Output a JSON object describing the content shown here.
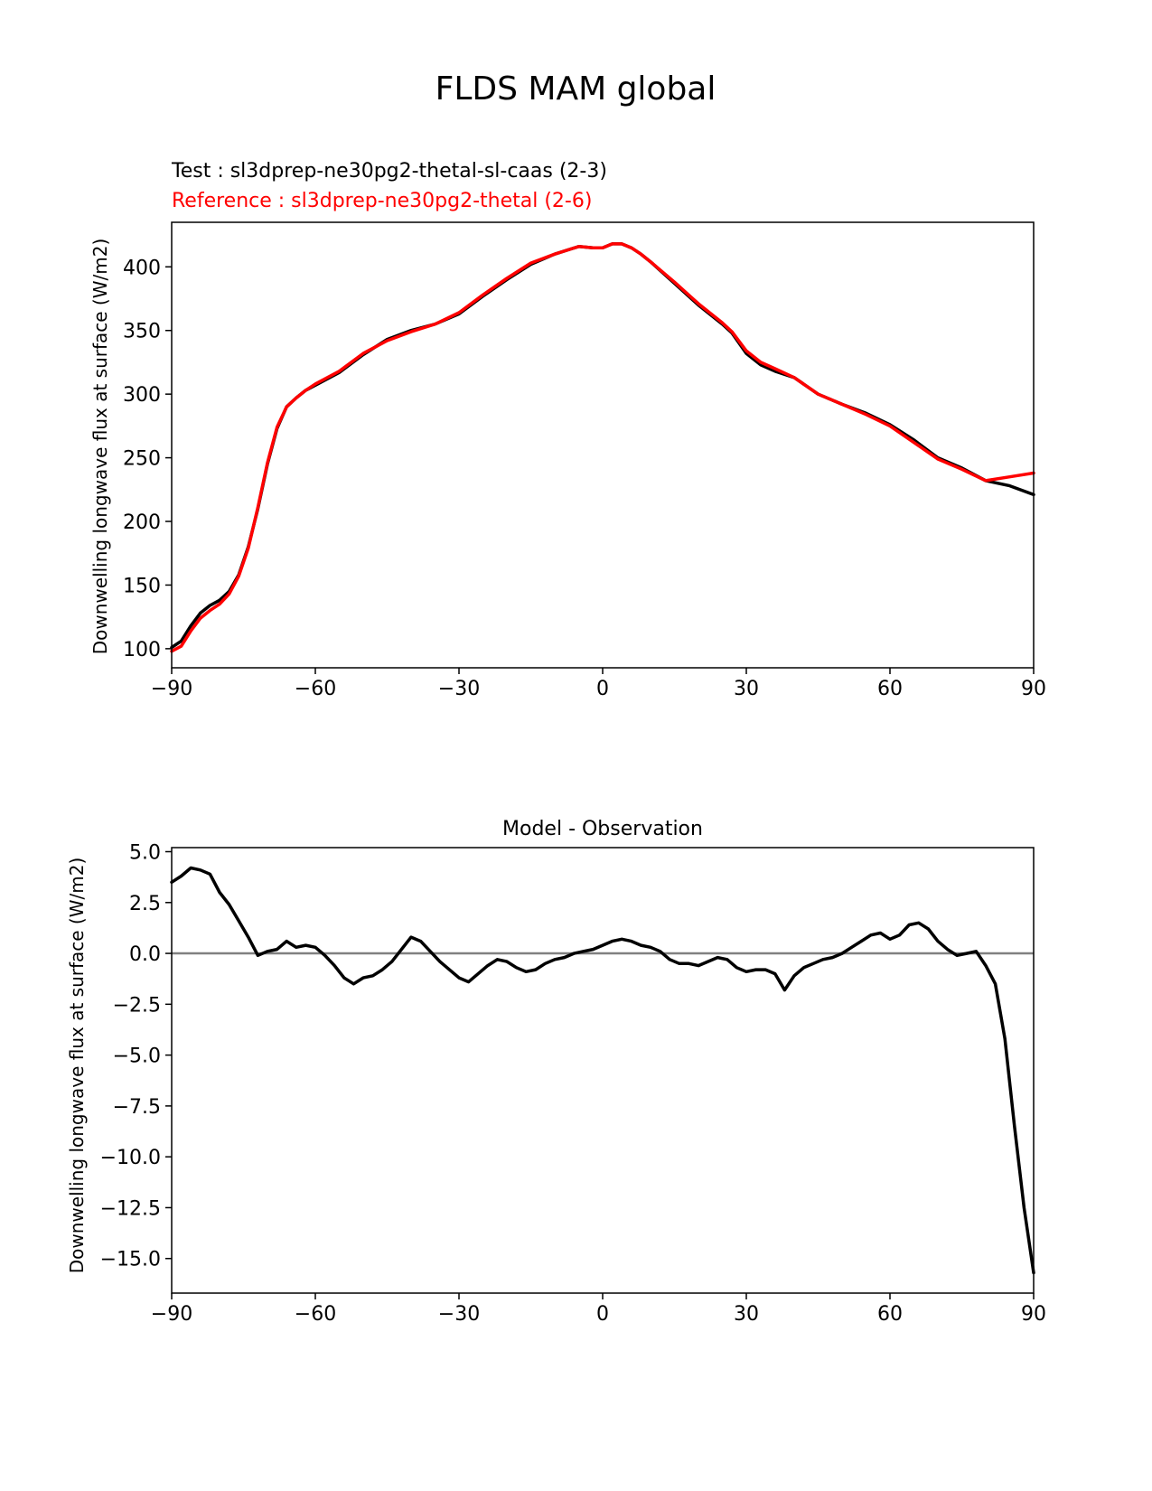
{
  "figure": {
    "title": "FLDS MAM global"
  },
  "chart_data": [
    {
      "type": "line",
      "title_lines": [
        {
          "text": "Test : sl3dprep-ne30pg2-thetal-sl-caas (2-3)",
          "color": "#000000"
        },
        {
          "text": "Reference : sl3dprep-ne30pg2-thetal (2-6)",
          "color": "#ff0000"
        }
      ],
      "xlabel": "",
      "ylabel": "Downwelling longwave flux at surface (W/m2)",
      "xlim": [
        -90,
        90
      ],
      "ylim": [
        85,
        435
      ],
      "xticks": [
        "−90",
        "−60",
        "−30",
        "0",
        "30",
        "60",
        "90"
      ],
      "xtick_values": [
        -90,
        -60,
        -30,
        0,
        30,
        60,
        90
      ],
      "yticks": [
        "100",
        "150",
        "200",
        "250",
        "300",
        "350",
        "400"
      ],
      "ytick_values": [
        100,
        150,
        200,
        250,
        300,
        350,
        400
      ],
      "grid": false,
      "series": [
        {
          "color": "#000000",
          "x": [
            -90,
            -88,
            -86,
            -84,
            -82,
            -80,
            -78,
            -76,
            -74,
            -72,
            -70,
            -68,
            -66,
            -64,
            -62,
            -60,
            -55,
            -50,
            -45,
            -40,
            -35,
            -30,
            -25,
            -20,
            -15,
            -10,
            -5,
            -2,
            0,
            2,
            4,
            6,
            8,
            10,
            15,
            20,
            25,
            27,
            30,
            33,
            36,
            40,
            45,
            50,
            55,
            60,
            65,
            70,
            75,
            80,
            85,
            90
          ],
          "y": [
            101,
            106,
            118,
            128,
            134,
            138,
            145,
            158,
            180,
            210,
            245,
            273,
            290,
            297,
            303,
            307,
            317,
            331,
            343,
            350,
            355,
            363,
            377,
            390,
            402,
            410,
            416,
            415,
            415,
            418,
            418,
            415,
            410,
            404,
            387,
            370,
            355,
            348,
            332,
            323,
            318,
            313,
            300,
            292,
            285,
            276,
            264,
            250,
            242,
            232,
            228,
            221
          ]
        },
        {
          "color": "#ff0000",
          "x": [
            -90,
            -88,
            -86,
            -84,
            -82,
            -80,
            -78,
            -76,
            -74,
            -72,
            -70,
            -68,
            -66,
            -64,
            -62,
            -60,
            -55,
            -50,
            -45,
            -40,
            -35,
            -30,
            -25,
            -20,
            -15,
            -10,
            -5,
            -2,
            0,
            2,
            4,
            6,
            8,
            10,
            15,
            20,
            25,
            27,
            30,
            33,
            36,
            40,
            45,
            50,
            55,
            60,
            65,
            70,
            75,
            80,
            85,
            90
          ],
          "y": [
            98,
            102,
            114,
            124,
            130,
            135,
            143,
            157,
            179,
            211,
            246,
            274,
            290,
            297,
            303,
            308,
            318,
            332,
            342,
            349,
            355,
            364,
            378,
            391,
            403,
            410,
            416,
            415,
            415,
            418,
            418,
            415,
            410,
            404,
            388,
            371,
            356,
            349,
            334,
            325,
            320,
            313,
            300,
            292,
            284,
            275,
            262,
            249,
            241,
            232,
            235,
            238
          ]
        }
      ]
    },
    {
      "type": "line",
      "title": "Model - Observation",
      "xlabel": "",
      "ylabel": "Downwelling longwave flux at surface (W/m2)",
      "xlim": [
        -90,
        90
      ],
      "ylim": [
        -16.7,
        5.2
      ],
      "xticks": [
        "−90",
        "−60",
        "−30",
        "0",
        "30",
        "60",
        "90"
      ],
      "xtick_values": [
        -90,
        -60,
        -30,
        0,
        30,
        60,
        90
      ],
      "yticks": [
        "5.0",
        "2.5",
        "0.0",
        "−2.5",
        "−5.0",
        "−7.5",
        "−10.0",
        "−12.5",
        "−15.0"
      ],
      "ytick_values": [
        5,
        2.5,
        0,
        -2.5,
        -5,
        -7.5,
        -10,
        -12.5,
        -15
      ],
      "grid": false,
      "reference_line": {
        "y": 0,
        "color": "#808080"
      },
      "series": [
        {
          "color": "#000000",
          "x": [
            -90,
            -88,
            -86,
            -84,
            -82,
            -80,
            -78,
            -76,
            -74,
            -72,
            -70,
            -68,
            -66,
            -64,
            -62,
            -60,
            -58,
            -56,
            -54,
            -52,
            -50,
            -48,
            -46,
            -44,
            -42,
            -40,
            -38,
            -36,
            -34,
            -32,
            -30,
            -28,
            -26,
            -24,
            -22,
            -20,
            -18,
            -16,
            -14,
            -12,
            -10,
            -8,
            -6,
            -4,
            -2,
            0,
            2,
            4,
            6,
            8,
            10,
            12,
            14,
            16,
            18,
            20,
            22,
            24,
            26,
            28,
            30,
            32,
            34,
            36,
            38,
            40,
            42,
            44,
            46,
            48,
            50,
            52,
            54,
            56,
            58,
            60,
            62,
            64,
            66,
            68,
            70,
            72,
            74,
            76,
            78,
            80,
            82,
            84,
            86,
            88,
            90
          ],
          "y": [
            3.5,
            3.8,
            4.2,
            4.1,
            3.9,
            3.0,
            2.4,
            1.6,
            0.8,
            -0.1,
            0.1,
            0.2,
            0.6,
            0.3,
            0.4,
            0.3,
            -0.1,
            -0.6,
            -1.2,
            -1.5,
            -1.2,
            -1.1,
            -0.8,
            -0.4,
            0.2,
            0.8,
            0.6,
            0.1,
            -0.4,
            -0.8,
            -1.2,
            -1.4,
            -1.0,
            -0.6,
            -0.3,
            -0.4,
            -0.7,
            -0.9,
            -0.8,
            -0.5,
            -0.3,
            -0.2,
            0.0,
            0.1,
            0.2,
            0.4,
            0.6,
            0.7,
            0.6,
            0.4,
            0.3,
            0.1,
            -0.3,
            -0.5,
            -0.5,
            -0.6,
            -0.4,
            -0.2,
            -0.3,
            -0.7,
            -0.9,
            -0.8,
            -0.8,
            -1.0,
            -1.8,
            -1.1,
            -0.7,
            -0.5,
            -0.3,
            -0.2,
            0.0,
            0.3,
            0.6,
            0.9,
            1.0,
            0.7,
            0.9,
            1.4,
            1.5,
            1.2,
            0.6,
            0.2,
            -0.1,
            0.0,
            0.1,
            -0.6,
            -1.5,
            -4.2,
            -8.5,
            -12.5,
            -15.7
          ]
        }
      ]
    }
  ]
}
